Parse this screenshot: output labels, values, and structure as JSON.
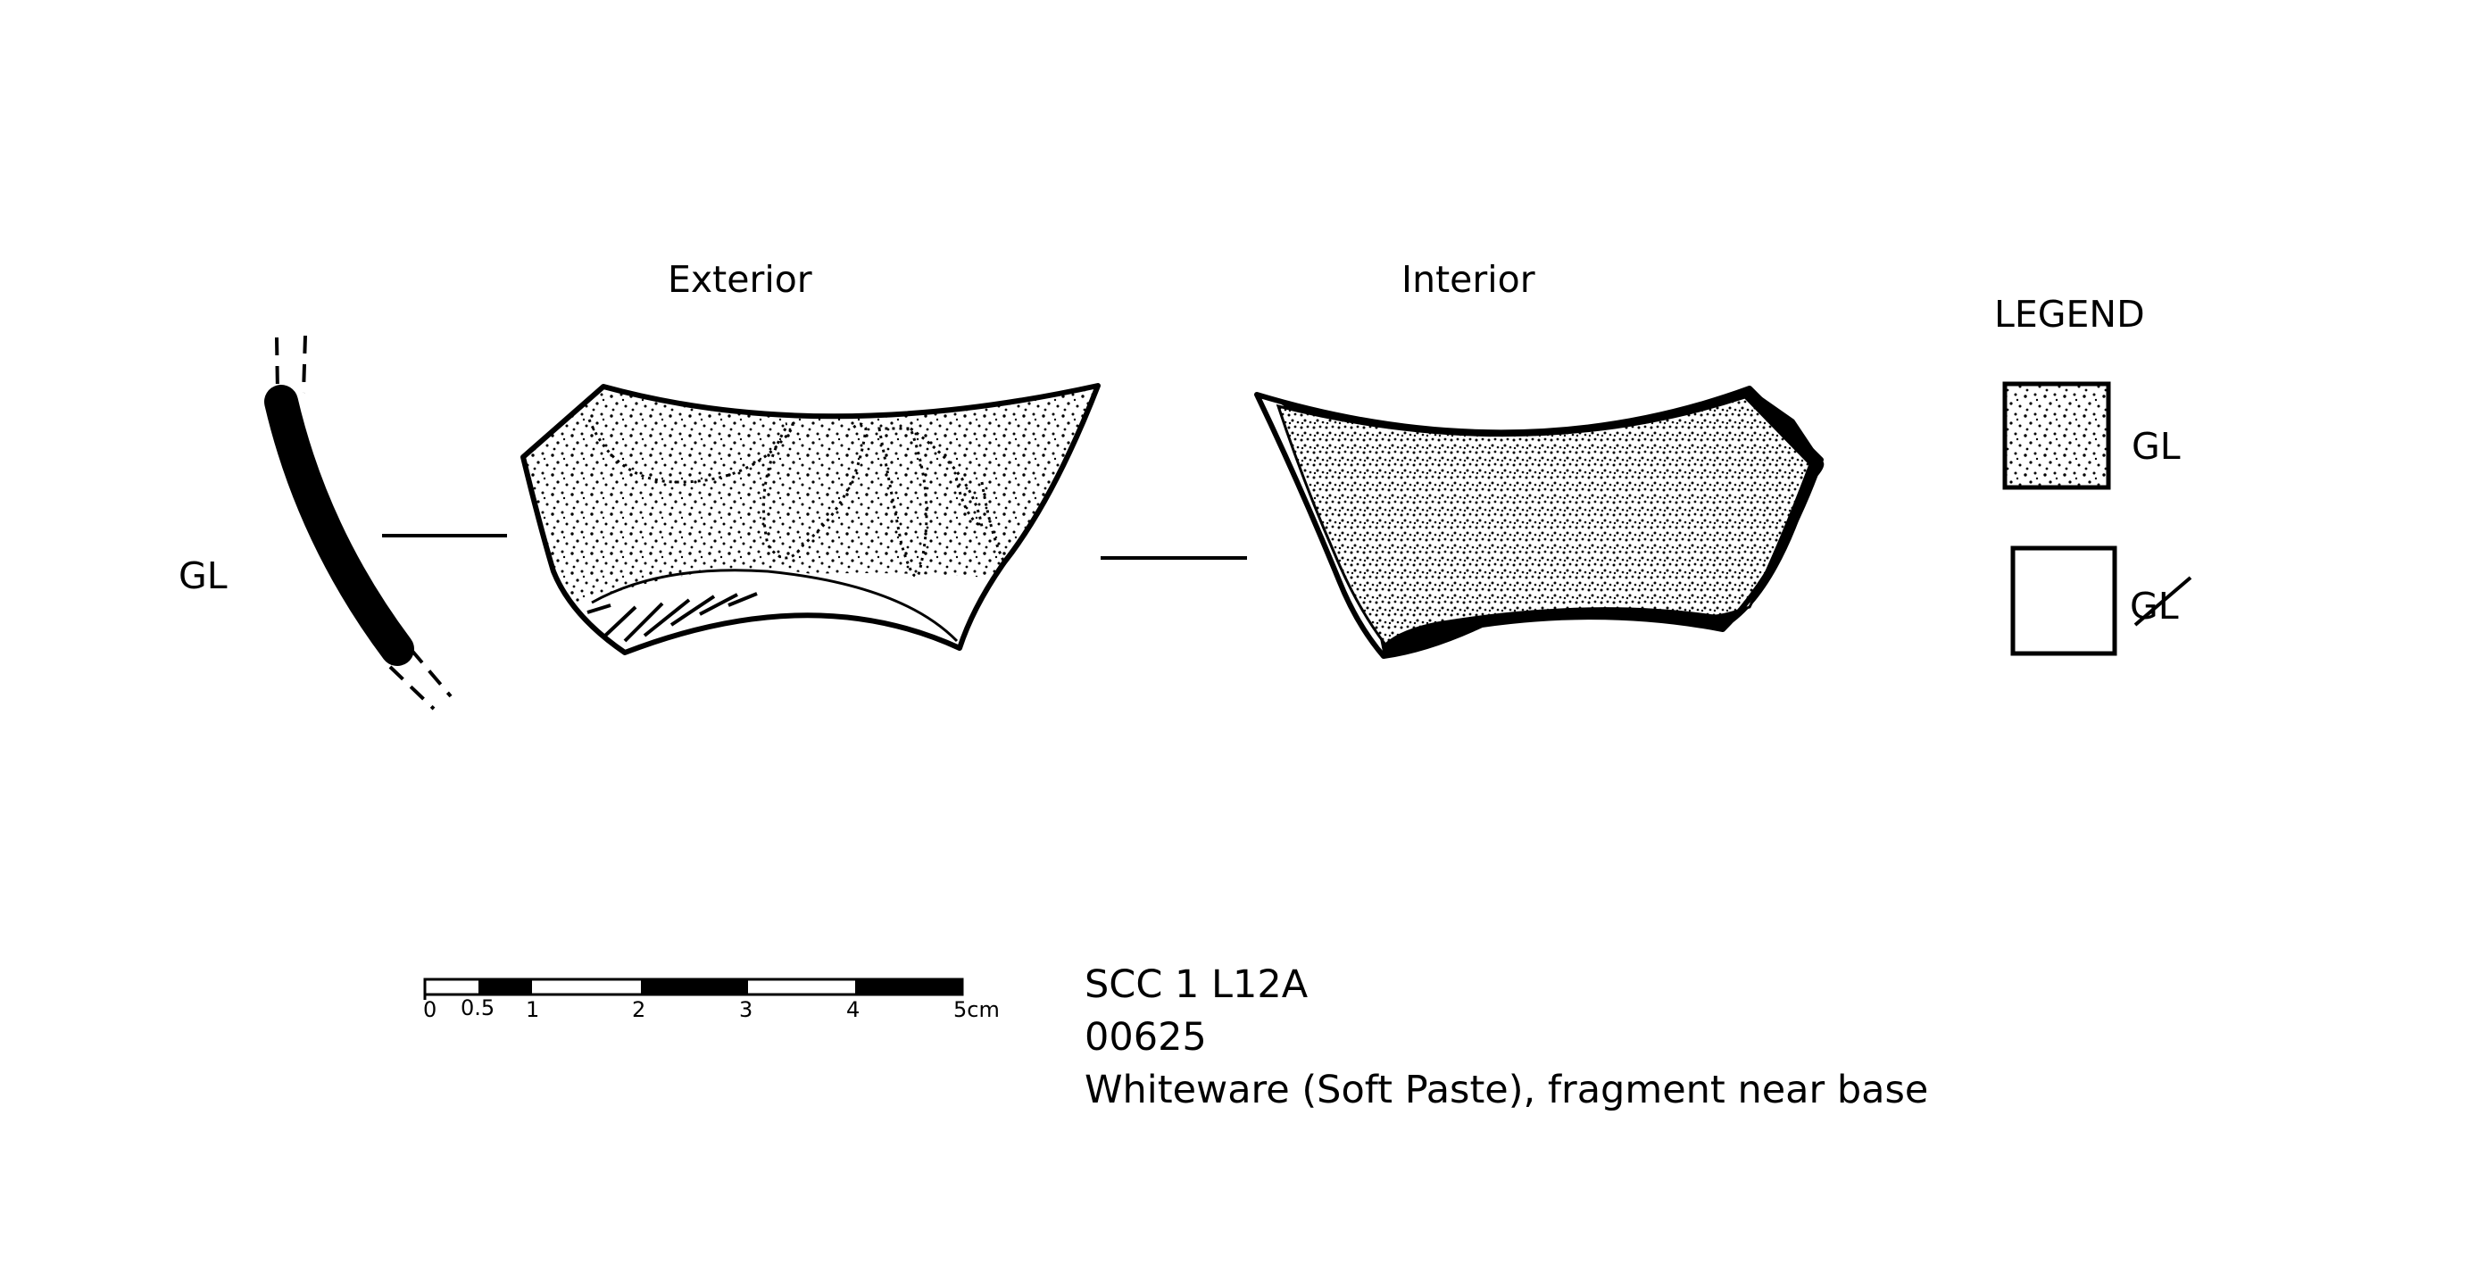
{
  "views": {
    "exterior": "Exterior",
    "interior": "Interior"
  },
  "profile_label": "GL",
  "legend": {
    "title": "LEGEND",
    "items": [
      {
        "label": "GL",
        "fill": "stippled",
        "meaning": "glazed"
      },
      {
        "label": "GL",
        "fill": "blank",
        "meaning": "unglazed (struck through)"
      }
    ]
  },
  "scale_bar": {
    "ticks": [
      "0",
      "0.5",
      "1",
      "2",
      "3",
      "4",
      "5cm"
    ]
  },
  "caption": {
    "context": "SCC 1 L12A",
    "number": "00625",
    "description": "Whiteware (Soft Paste), fragment near base"
  },
  "colors": {
    "ink": "#000000",
    "paper": "#ffffff"
  }
}
